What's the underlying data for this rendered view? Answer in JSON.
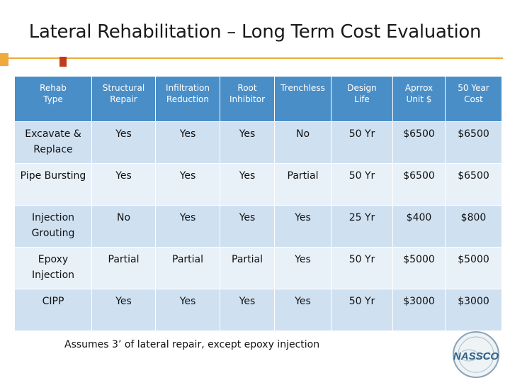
{
  "title": "Lateral Rehabilitation – Long Term Cost Evaluation",
  "columns": [
    [
      "Rehab",
      "Type"
    ],
    [
      "Structural",
      "Repair"
    ],
    [
      "Infiltration",
      "Reduction"
    ],
    [
      "Root",
      "Inhibitor"
    ],
    [
      "Trenchless",
      ""
    ],
    [
      "Design",
      "Life"
    ],
    [
      "Aprrox",
      "Unit $"
    ],
    [
      "50 Year",
      "Cost"
    ]
  ],
  "rows": [
    {
      "type": [
        "Excavate &",
        "Replace"
      ],
      "structural": "Yes",
      "infiltration": "Yes",
      "root": "Yes",
      "trenchless": "No",
      "life": "50 Yr",
      "unit": "$6500",
      "cost": "$6500"
    },
    {
      "type": [
        "Pipe Bursting",
        ""
      ],
      "structural": "Yes",
      "infiltration": "Yes",
      "root": "Yes",
      "trenchless": "Partial",
      "life": "50 Yr",
      "unit": "$6500",
      "cost": "$6500"
    },
    {
      "type": [
        "Injection",
        "Grouting"
      ],
      "structural": "No",
      "infiltration": "Yes",
      "root": "Yes",
      "trenchless": "Yes",
      "life": "25 Yr",
      "unit": "$400",
      "cost": "$800"
    },
    {
      "type": [
        "Epoxy",
        "Injection"
      ],
      "structural": "Partial",
      "infiltration": "Partial",
      "root": "Partial",
      "trenchless": "Yes",
      "life": "50 Yr",
      "unit": "$5000",
      "cost": "$5000"
    },
    {
      "type": [
        "CIPP",
        ""
      ],
      "structural": "Yes",
      "infiltration": "Yes",
      "root": "Yes",
      "trenchless": "Yes",
      "life": "50 Yr",
      "unit": "$3000",
      "cost": "$3000"
    }
  ],
  "footnote": "Assumes 3’ of lateral repair, except epoxy injection",
  "logo": {
    "text": "NASSCO",
    "icon": "nassco-logo"
  },
  "colors": {
    "accent": "#f0a93b",
    "accent_dark": "#bf3b1a",
    "header": "#4a8ec7",
    "row_dark": "#cfe0f1",
    "row_light": "#e8f0f8"
  }
}
